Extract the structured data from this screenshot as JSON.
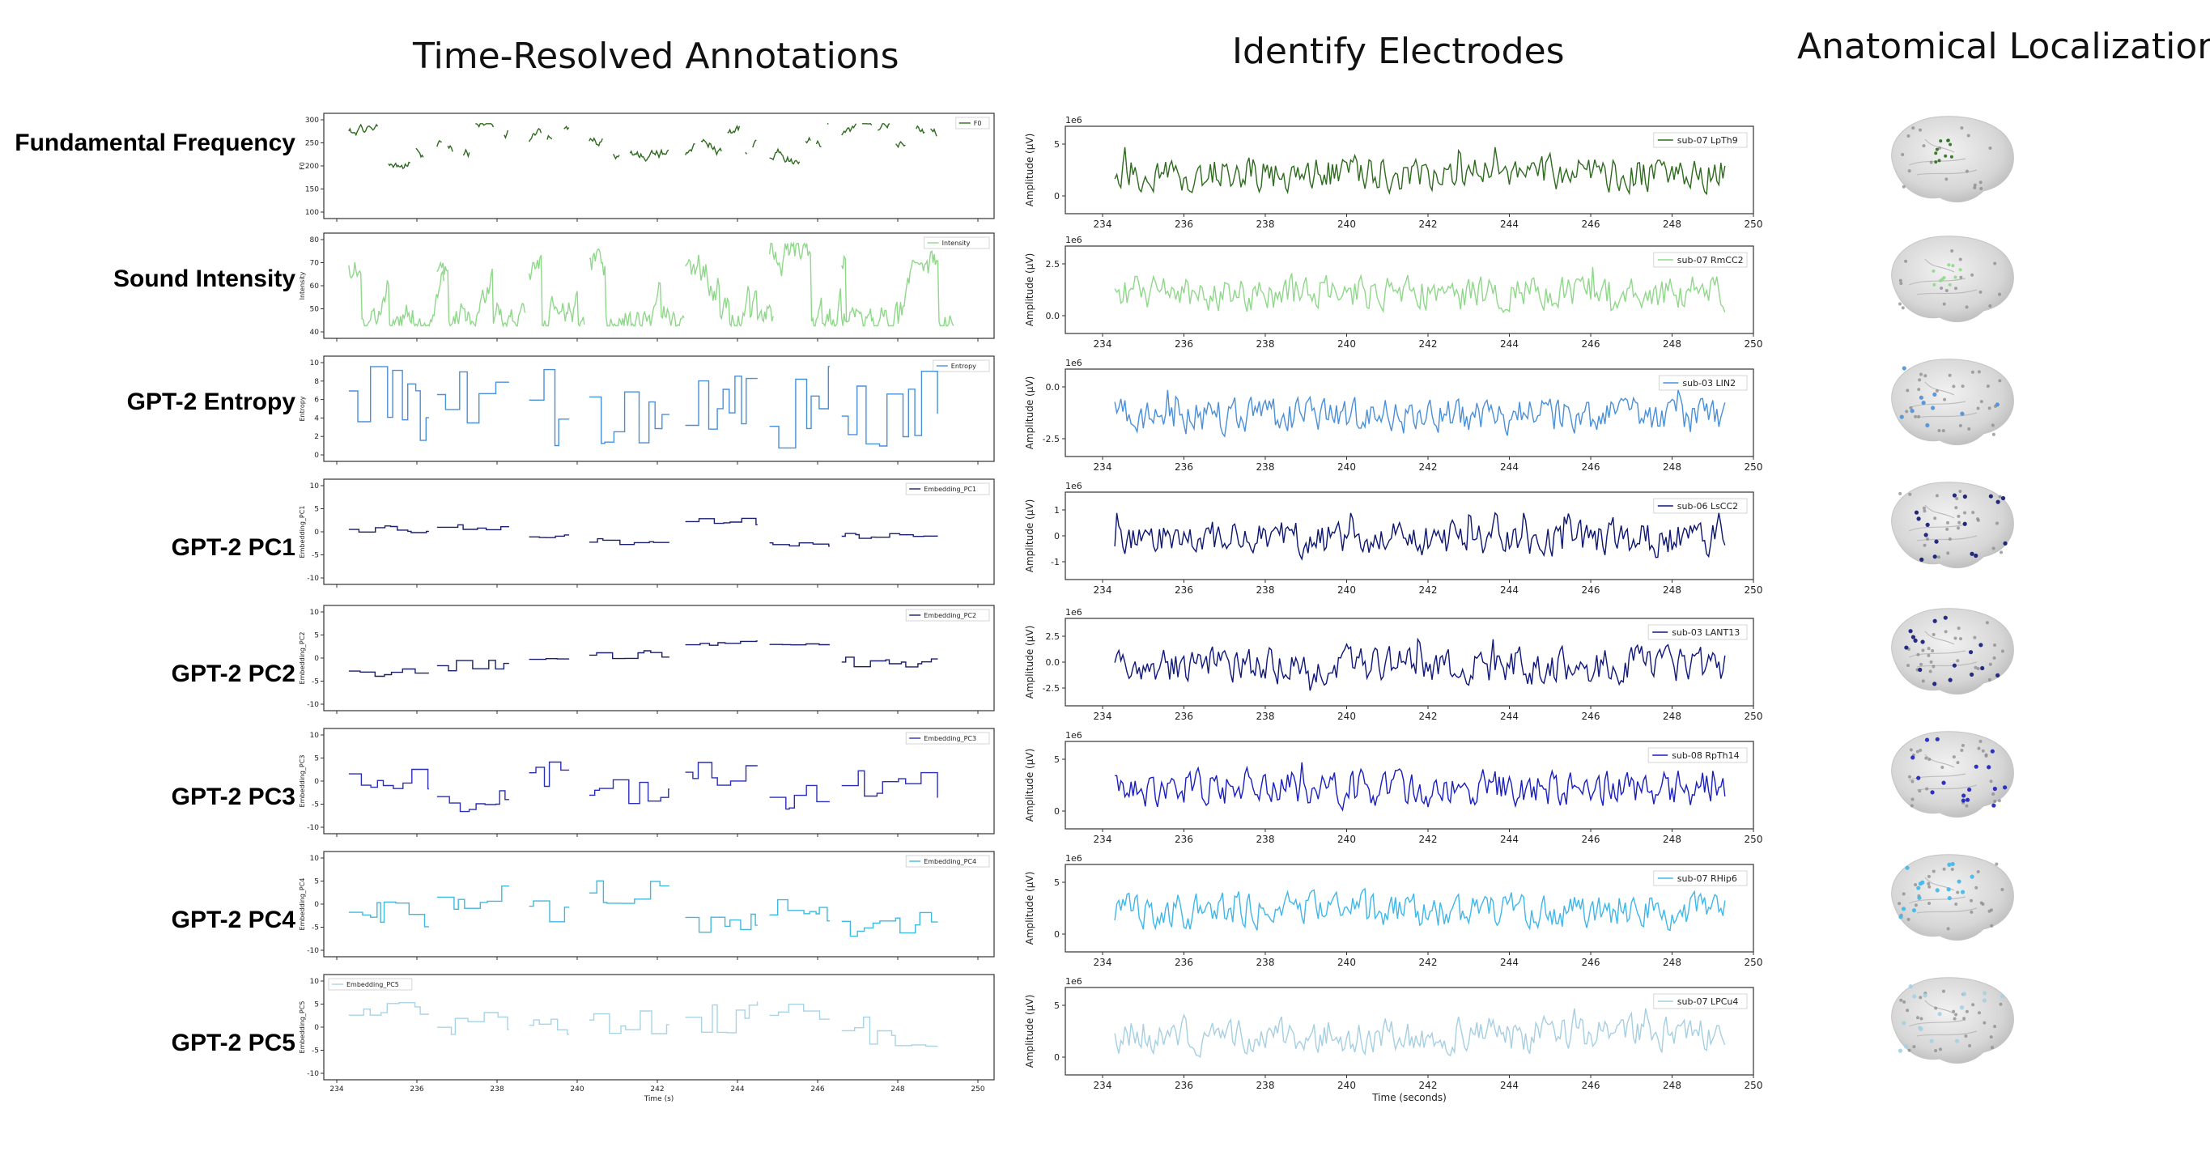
{
  "titles": {
    "annotations": "Time-Resolved Annotations",
    "electrodes": "Identify Electrodes",
    "localization": "Anatomical Localization"
  },
  "rows": [
    {
      "label": "Fundamental Frequency",
      "color": "#2e6b1f",
      "legend": "F0",
      "ylabel": "F0",
      "yticks": [
        "300",
        "250",
        "200",
        "150",
        "100"
      ],
      "style": "pitch",
      "electrode": "sub-07 LpTh9",
      "e_yticks": [
        "5",
        "0"
      ],
      "e_color": "#2e6b1f"
    },
    {
      "label": "Sound Intensity",
      "color": "#8fd88a",
      "legend": "Intensity",
      "ylabel": "Intensity",
      "yticks": [
        "80",
        "70",
        "60",
        "50",
        "40"
      ],
      "style": "intensity",
      "electrode": "sub-07 RmCC2",
      "e_yticks": [
        "2.5",
        "0.0"
      ],
      "e_color": "#8fd88a"
    },
    {
      "label": "GPT-2 Entropy",
      "color": "#4a90d9",
      "legend": "Entropy",
      "ylabel": "Entropy",
      "yticks": [
        "10",
        "8",
        "6",
        "4",
        "2",
        "0"
      ],
      "style": "step",
      "electrode": "sub-03 LIN2",
      "e_yticks": [
        "0.0",
        "-2.5"
      ],
      "e_color": "#4a90d9"
    },
    {
      "label": "GPT-2 PC1",
      "color": "#1a1f6e",
      "legend": "Embedding_PC1",
      "ylabel": "Embedding_PC1",
      "yticks": [
        "10",
        "5",
        "0",
        "-5",
        "-10"
      ],
      "style": "step",
      "electrode": "sub-06 LsCC2",
      "e_yticks": [
        "1",
        "0",
        "-1"
      ],
      "e_color": "#0d1670"
    },
    {
      "label": "GPT-2 PC2",
      "color": "#1a1f6e",
      "legend": "Embedding_PC2",
      "ylabel": "Embedding_PC2",
      "yticks": [
        "10",
        "5",
        "0",
        "-5",
        "-10"
      ],
      "style": "step",
      "electrode": "sub-03 LANT13",
      "e_yticks": [
        "2.5",
        "0.0",
        "-2.5"
      ],
      "e_color": "#10187a"
    },
    {
      "label": "GPT-2 PC3",
      "color": "#2a2fb8",
      "legend": "Embedding_PC3",
      "ylabel": "Embedding_PC3",
      "yticks": [
        "10",
        "5",
        "0",
        "-5",
        "-10"
      ],
      "style": "step",
      "electrode": "sub-08 RpTh14",
      "e_yticks": [
        "5",
        "0"
      ],
      "e_color": "#1a1fc0"
    },
    {
      "label": "GPT-2 PC4",
      "color": "#40b8e0",
      "legend": "Embedding_PC4",
      "ylabel": "Embedding_PC4",
      "yticks": [
        "10",
        "5",
        "0",
        "-5",
        "-10"
      ],
      "style": "step",
      "electrode": "sub-07 RHip6",
      "e_yticks": [
        "5",
        "0"
      ],
      "e_color": "#3fb7ea"
    },
    {
      "label": "GPT-2 PC5",
      "color": "#a8d4e6",
      "legend": "Embedding_PC5",
      "ylabel": "Embedding_PC5",
      "yticks": [
        "10",
        "5",
        "0",
        "-5",
        "-10"
      ],
      "style": "step",
      "electrode": "sub-07 LPCu4",
      "e_yticks": [
        "5",
        "0"
      ],
      "e_color": "#a6cfe2"
    }
  ],
  "x_ticks": [
    "234",
    "236",
    "238",
    "240",
    "242",
    "244",
    "246",
    "248",
    "250"
  ],
  "annot_xlabel": "Time (s)",
  "elec_xlabel": "Time (seconds)",
  "elec_ylabel": "Amplitude (µV)",
  "elec_scale": "1e6"
}
